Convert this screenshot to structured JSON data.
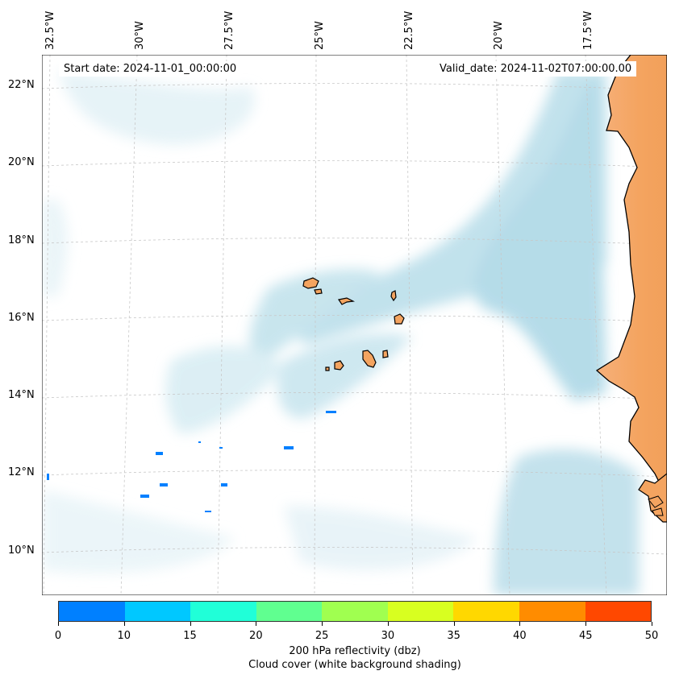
{
  "map": {
    "start_date": "Start date: 2024-11-01_00:00:00",
    "valid_date": "Valid_date: 2024-11-02T07:00:00.00",
    "lon_labels": [
      "32.5°W",
      "30°W",
      "27.5°W",
      "25°W",
      "22.5°W",
      "20°W",
      "17.5°W"
    ],
    "lat_labels": [
      "22°N",
      "20°N",
      "18°N",
      "16°N",
      "14°N",
      "12°N",
      "10°N"
    ],
    "colors": {
      "land": "#f4a460",
      "cloud": "#add8e6",
      "reflectivity_low": "#0080ff"
    }
  },
  "colorbar": {
    "ticks": [
      "0",
      "10",
      "15",
      "20",
      "25",
      "30",
      "35",
      "40",
      "45",
      "50"
    ],
    "colors": [
      "#0080ff",
      "#00c8ff",
      "#20ffd8",
      "#60ff90",
      "#a0ff50",
      "#d8ff20",
      "#ffd800",
      "#ff8c00",
      "#ff4800"
    ],
    "label_line1": "200 hPa reflectivity (dbz)",
    "label_line2": "Cloud cover (white background shading)"
  }
}
